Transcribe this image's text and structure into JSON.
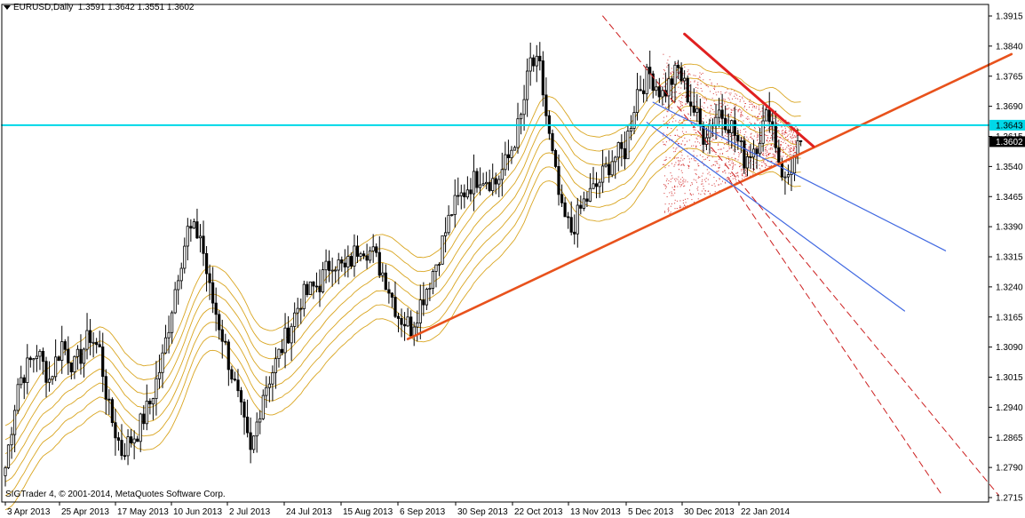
{
  "header": {
    "symbol": "EURUSD,Daily",
    "ohlc": "1.3591 1.3642 1.3551 1.3602"
  },
  "footer": {
    "copyright": "SIGTrader 4, © 2001-2014, MetaQuotes Software Corp."
  },
  "colors": {
    "background": "#ffffff",
    "candle": "#000000",
    "moving_averages": "#d9a520",
    "support_line": "#e8521c",
    "resistance_line": "#e02020",
    "channel": "#4169e1",
    "projection": "#cc2020",
    "horizontal_level": "#00d8e8",
    "scatter": "#cc1010"
  },
  "chart_data": {
    "type": "candlestick",
    "symbol": "EURUSD",
    "timeframe": "Daily",
    "ylim": [
      1.2715,
      1.3915
    ],
    "y_ticks": [
      "1.3915",
      "1.3840",
      "1.3765",
      "1.3690",
      "1.3615",
      "1.3540",
      "1.3465",
      "1.3390",
      "1.3315",
      "1.3240",
      "1.3165",
      "1.3090",
      "1.3015",
      "1.2940",
      "1.2865",
      "1.2790",
      "1.2715"
    ],
    "x_ticks": [
      "3 Apr 2013",
      "25 Apr 2013",
      "17 May 2013",
      "10 Jun 2013",
      "2 Jul 2013",
      "24 Jul 2013",
      "15 Aug 2013",
      "6 Sep 2013",
      "30 Sep 2013",
      "22 Oct 2013",
      "13 Nov 2013",
      "5 Dec 2013",
      "30 Dec 2013",
      "22 Jan 2014"
    ],
    "price_labels": [
      {
        "text": "1.3643",
        "value": 1.3643,
        "kind": "level"
      },
      {
        "text": "1.3602",
        "value": 1.3602,
        "kind": "current"
      }
    ],
    "close_path": [
      {
        "x": 0,
        "y": 1.279
      },
      {
        "x": 4,
        "y": 1.3
      },
      {
        "x": 10,
        "y": 1.308
      },
      {
        "x": 14,
        "y": 1.301
      },
      {
        "x": 18,
        "y": 1.31
      },
      {
        "x": 22,
        "y": 1.304
      },
      {
        "x": 27,
        "y": 1.312
      },
      {
        "x": 30,
        "y": 1.308
      },
      {
        "x": 33,
        "y": 1.293
      },
      {
        "x": 37,
        "y": 1.283
      },
      {
        "x": 42,
        "y": 1.288
      },
      {
        "x": 46,
        "y": 1.295
      },
      {
        "x": 50,
        "y": 1.306
      },
      {
        "x": 55,
        "y": 1.328
      },
      {
        "x": 58,
        "y": 1.338
      },
      {
        "x": 62,
        "y": 1.337
      },
      {
        "x": 65,
        "y": 1.323
      },
      {
        "x": 69,
        "y": 1.312
      },
      {
        "x": 74,
        "y": 1.296
      },
      {
        "x": 78,
        "y": 1.282
      },
      {
        "x": 82,
        "y": 1.298
      },
      {
        "x": 86,
        "y": 1.305
      },
      {
        "x": 90,
        "y": 1.313
      },
      {
        "x": 94,
        "y": 1.321
      },
      {
        "x": 100,
        "y": 1.325
      },
      {
        "x": 104,
        "y": 1.331
      },
      {
        "x": 108,
        "y": 1.328
      },
      {
        "x": 113,
        "y": 1.335
      },
      {
        "x": 117,
        "y": 1.332
      },
      {
        "x": 121,
        "y": 1.326
      },
      {
        "x": 125,
        "y": 1.317
      },
      {
        "x": 129,
        "y": 1.314
      },
      {
        "x": 133,
        "y": 1.322
      },
      {
        "x": 137,
        "y": 1.33
      },
      {
        "x": 142,
        "y": 1.343
      },
      {
        "x": 147,
        "y": 1.349
      },
      {
        "x": 151,
        "y": 1.352
      },
      {
        "x": 156,
        "y": 1.35
      },
      {
        "x": 160,
        "y": 1.356
      },
      {
        "x": 164,
        "y": 1.366
      },
      {
        "x": 167,
        "y": 1.38
      },
      {
        "x": 170,
        "y": 1.378
      },
      {
        "x": 173,
        "y": 1.361
      },
      {
        "x": 177,
        "y": 1.342
      },
      {
        "x": 180,
        "y": 1.338
      },
      {
        "x": 184,
        "y": 1.345
      },
      {
        "x": 188,
        "y": 1.349
      },
      {
        "x": 193,
        "y": 1.356
      },
      {
        "x": 197,
        "y": 1.358
      },
      {
        "x": 201,
        "y": 1.373
      },
      {
        "x": 205,
        "y": 1.377
      },
      {
        "x": 209,
        "y": 1.372
      },
      {
        "x": 214,
        "y": 1.378
      },
      {
        "x": 218,
        "y": 1.37
      },
      {
        "x": 222,
        "y": 1.362
      },
      {
        "x": 227,
        "y": 1.368
      },
      {
        "x": 231,
        "y": 1.364
      },
      {
        "x": 235,
        "y": 1.356
      },
      {
        "x": 239,
        "y": 1.36
      },
      {
        "x": 243,
        "y": 1.368
      },
      {
        "x": 246,
        "y": 1.356
      },
      {
        "x": 248,
        "y": 1.35
      },
      {
        "x": 251,
        "y": 1.356
      },
      {
        "x": 253,
        "y": 1.3602
      }
    ],
    "moving_average_offsets": [
      0.0035,
      0.007,
      0.0105
    ],
    "drawings": [
      {
        "name": "support-trendline",
        "x1": 128,
        "y1": 1.311,
        "x2": 320,
        "y2": 1.382
      },
      {
        "name": "resistance-trendline",
        "x1": 216,
        "y1": 1.387,
        "x2": 257,
        "y2": 1.359
      },
      {
        "name": "channel-upper",
        "x1": 206,
        "y1": 1.37,
        "x2": 299,
        "y2": 1.333
      },
      {
        "name": "channel-lower",
        "x1": 204,
        "y1": 1.365,
        "x2": 286,
        "y2": 1.318
      },
      {
        "name": "projection-outer",
        "x1": 190,
        "y1": 1.3915,
        "x2": 316,
        "y2": 1.272
      },
      {
        "name": "projection-inner",
        "x1": 230,
        "y1": 1.351,
        "x2": 298,
        "y2": 1.272
      },
      {
        "name": "horizontal-level",
        "x1": 0,
        "y1": 1.3643,
        "x2": 320,
        "y2": 1.3643
      }
    ],
    "scatter_zone": {
      "x1": 209,
      "x2": 252,
      "y1": 1.3415,
      "y2": 1.383
    }
  }
}
